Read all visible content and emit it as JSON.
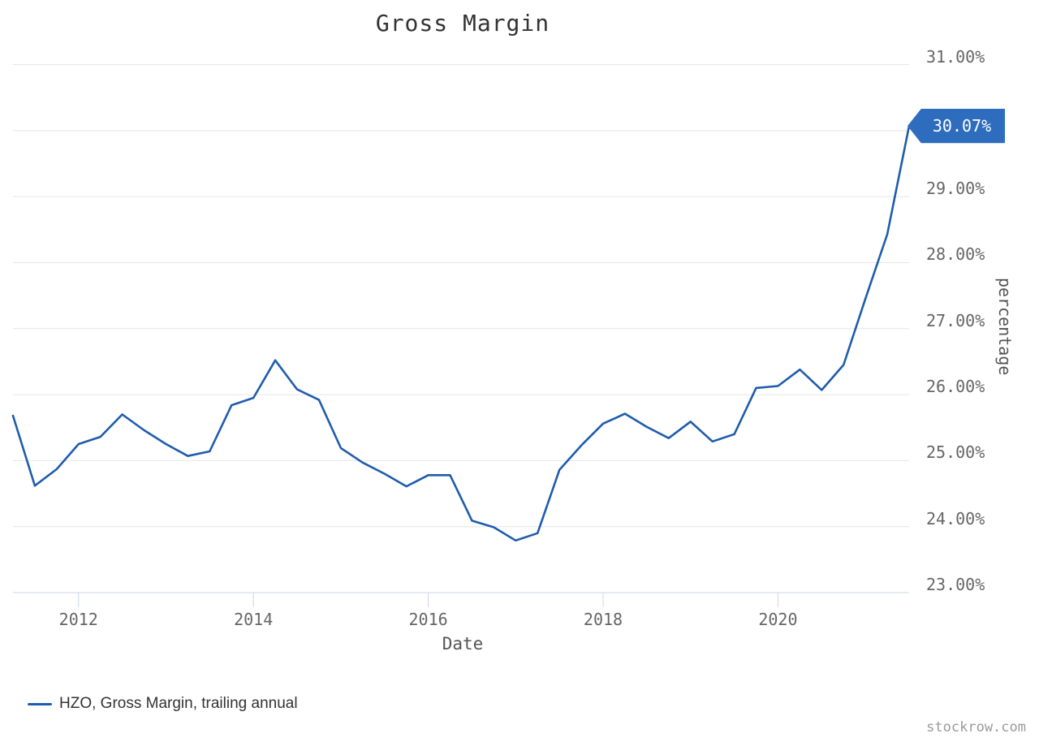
{
  "watermark": "stockrow.com",
  "colors": {
    "line": "#1f5cad",
    "flag_bg": "#2e6cbe",
    "flag_text": "#ffffff",
    "gridline": "#e6e6e6",
    "axis_line": "#ccd6eb",
    "tick": "#ccd6eb",
    "title_text": "#333333",
    "tick_label_text": "#666666",
    "legend_text": "#333333",
    "watermark_text": "#9a9a9a"
  },
  "chart_data": {
    "type": "line",
    "title": "Gross Margin",
    "xlabel": "Date",
    "ylabel": "percentage",
    "xlim": [
      2011.25,
      2021.5
    ],
    "ylim": [
      23,
      31
    ],
    "grid": true,
    "legend_position": "bottom-left",
    "y_gridlines": [
      23,
      24,
      25,
      26,
      27,
      28,
      29,
      30,
      31
    ],
    "y_tick_labels": [
      {
        "value": 31,
        "label": "31.00%"
      },
      {
        "value": 29,
        "label": "29.00%"
      },
      {
        "value": 28,
        "label": "28.00%"
      },
      {
        "value": 27,
        "label": "27.00%"
      },
      {
        "value": 26,
        "label": "26.00%"
      },
      {
        "value": 25,
        "label": "25.00%"
      },
      {
        "value": 24,
        "label": "24.00%"
      },
      {
        "value": 23,
        "label": "23.00%"
      }
    ],
    "x_ticks": [
      {
        "value": 2012,
        "label": "2012"
      },
      {
        "value": 2014,
        "label": "2014"
      },
      {
        "value": 2016,
        "label": "2016"
      },
      {
        "value": 2018,
        "label": "2018"
      },
      {
        "value": 2020,
        "label": "2020"
      }
    ],
    "series": [
      {
        "name": "HZO, Gross Margin, trailing annual",
        "color": "#1f5cad",
        "x": [
          2011.25,
          2011.5,
          2011.75,
          2012.0,
          2012.25,
          2012.5,
          2012.75,
          2013.0,
          2013.25,
          2013.5,
          2013.75,
          2014.0,
          2014.25,
          2014.5,
          2014.75,
          2015.0,
          2015.25,
          2015.5,
          2015.75,
          2016.0,
          2016.25,
          2016.5,
          2016.75,
          2017.0,
          2017.25,
          2017.5,
          2017.75,
          2018.0,
          2018.25,
          2018.5,
          2018.75,
          2019.0,
          2019.25,
          2019.5,
          2019.75,
          2020.0,
          2020.25,
          2020.5,
          2020.75,
          2021.0,
          2021.25,
          2021.5
        ],
        "values": [
          25.68,
          24.62,
          24.87,
          25.25,
          25.36,
          25.7,
          25.46,
          25.25,
          25.07,
          25.14,
          25.84,
          25.95,
          26.52,
          26.08,
          25.92,
          25.19,
          24.97,
          24.8,
          24.61,
          24.78,
          24.78,
          24.09,
          23.99,
          23.79,
          23.9,
          24.86,
          25.23,
          25.56,
          25.71,
          25.51,
          25.34,
          25.59,
          25.29,
          25.4,
          26.1,
          26.13,
          26.38,
          26.07,
          26.45,
          27.45,
          28.43,
          30.07
        ]
      }
    ],
    "last_point_flag": {
      "label": "30.07%",
      "value": 30.07
    }
  }
}
